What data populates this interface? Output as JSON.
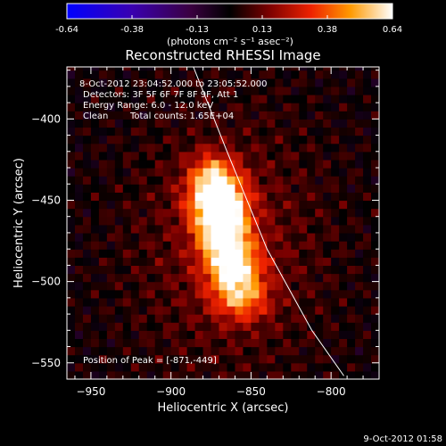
{
  "chart_data": {
    "type": "heatmap",
    "title": "Reconstructed RHESSI Image",
    "xlabel": "Heliocentric X (arcsec)",
    "ylabel": "Heliocentric Y (arcsec)",
    "xlim": [
      -965,
      -770
    ],
    "ylim": [
      -560,
      -368
    ],
    "x_ticks": [
      -950,
      -900,
      -850,
      -800
    ],
    "y_ticks": [
      -400,
      -450,
      -500,
      -550
    ],
    "colorbar": {
      "colormap": "flame",
      "range": [
        -0.64,
        0.64
      ],
      "ticks": [
        "-0.64",
        "-0.38",
        "-0.13",
        "0.13",
        "0.38",
        "0.64"
      ],
      "unit_label": "(photons cm⁻² s⁻¹ asec⁻²)"
    },
    "annotations": {
      "time_range": "8-Oct-2012 23:04:52.000 to 23:05:52.000",
      "detectors": "Detectors: 3F 5F 6F 7F 8F 9F, Att 1",
      "energy": "Energy Range: 6.0 - 12.0 keV",
      "clean": "Clean",
      "total_counts": "Total counts: 1.65E+04",
      "peak": "Position of Peak = [-871,-449]"
    },
    "peak": {
      "x": -871,
      "y": -449
    },
    "source_components": [
      {
        "x": -871,
        "y": -449,
        "sx": 12,
        "sy": 11,
        "amp": 0.64
      },
      {
        "x": -868,
        "y": -468,
        "sx": 11,
        "sy": 12,
        "amp": 0.52
      },
      {
        "x": -861,
        "y": -490,
        "sx": 12,
        "sy": 12,
        "amp": 0.48
      },
      {
        "x": -856,
        "y": -510,
        "sx": 12,
        "sy": 10,
        "amp": 0.32
      },
      {
        "x": -874,
        "y": -432,
        "sx": 10,
        "sy": 9,
        "amp": 0.28
      }
    ],
    "limb_curve": [
      {
        "x": -886,
        "y": -368
      },
      {
        "x": -865,
        "y": -420
      },
      {
        "x": -840,
        "y": -480
      },
      {
        "x": -812,
        "y": -530
      },
      {
        "x": -792,
        "y": -558
      }
    ],
    "footer_timestamp": "9-Oct-2012 01:58"
  }
}
